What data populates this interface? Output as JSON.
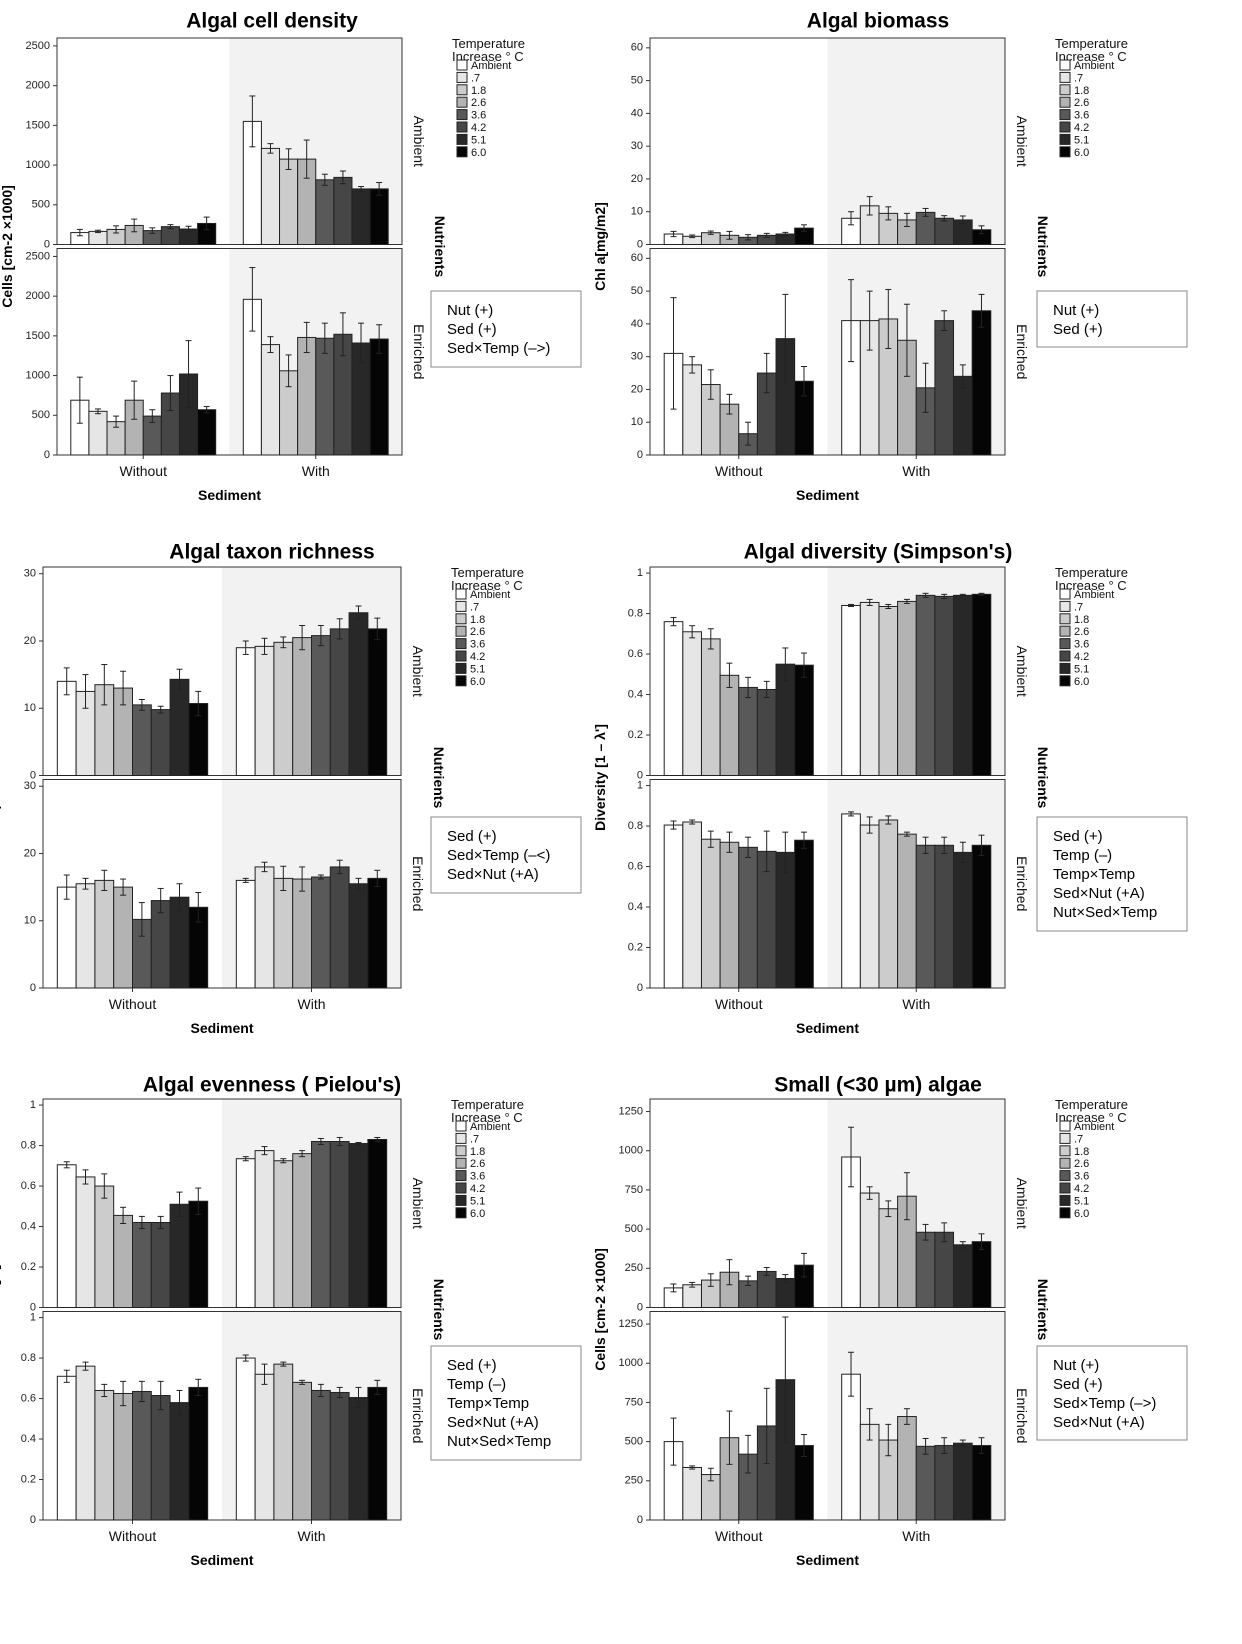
{
  "legend": {
    "title_lines": [
      "Temperature",
      "Increase ° C"
    ],
    "labels": [
      "Ambient",
      ".7",
      "1.8",
      "2.6",
      "3.6",
      "4.2",
      "5.1",
      "6.0"
    ],
    "colors": [
      "#ffffff",
      "#e6e6e6",
      "#cccccc",
      "#b3b3b3",
      "#595959",
      "#464646",
      "#282828",
      "#050505"
    ]
  },
  "facet_labels": {
    "nutrients": "Nutrients",
    "rows": [
      "Ambient",
      "Enriched"
    ]
  },
  "x_axis": {
    "label": "Sediment",
    "categories": [
      "Without",
      "With"
    ]
  },
  "chart_data": [
    {
      "type": "bar",
      "title": "Algal cell density",
      "ylabel": "Cells [cm-2 ×1000]",
      "xlabel": "Sediment",
      "categories": [
        "Without",
        "With"
      ],
      "facets": [
        "Ambient",
        "Enriched"
      ],
      "ylim": [
        0,
        2600
      ],
      "yticks": [
        0,
        500,
        1000,
        1500,
        2000,
        2500
      ],
      "values": {
        "Ambient": {
          "Without": [
            150,
            165,
            190,
            240,
            175,
            225,
            195,
            265
          ],
          "With": [
            1550,
            1210,
            1075,
            1075,
            815,
            845,
            700,
            700
          ]
        },
        "Enriched": {
          "Without": [
            690,
            550,
            420,
            690,
            490,
            780,
            1020,
            570
          ],
          "With": [
            1960,
            1390,
            1060,
            1480,
            1470,
            1520,
            1410,
            1460
          ]
        }
      },
      "errors": {
        "Ambient": {
          "Without": [
            40,
            15,
            45,
            80,
            35,
            25,
            35,
            80
          ],
          "With": [
            320,
            60,
            130,
            240,
            70,
            80,
            30,
            80
          ]
        },
        "Enriched": {
          "Without": [
            290,
            30,
            70,
            240,
            80,
            220,
            420,
            40
          ],
          "With": [
            400,
            100,
            200,
            190,
            190,
            270,
            250,
            180
          ]
        }
      },
      "effects": [
        "Nut (+)",
        "Sed (+)",
        "Sed×Temp (–>)"
      ]
    },
    {
      "type": "bar",
      "title": "Algal biomass",
      "ylabel": "Chl a[mg/m2]",
      "xlabel": "Sediment",
      "categories": [
        "Without",
        "With"
      ],
      "facets": [
        "Ambient",
        "Enriched"
      ],
      "ylim": [
        0,
        63
      ],
      "yticks": [
        0,
        10,
        20,
        30,
        40,
        50,
        60
      ],
      "values": {
        "Ambient": {
          "Without": [
            3.2,
            2.5,
            3.6,
            2.8,
            2.2,
            2.8,
            3.2,
            5.0
          ],
          "With": [
            8.0,
            11.8,
            9.5,
            7.5,
            9.8,
            8.0,
            7.5,
            4.5
          ]
        },
        "Enriched": {
          "Without": [
            31,
            27.5,
            21.5,
            15.5,
            6.5,
            25,
            35.5,
            22.5
          ],
          "With": [
            41,
            41,
            41.5,
            35,
            20.5,
            41,
            24,
            44
          ]
        }
      },
      "errors": {
        "Ambient": {
          "Without": [
            0.8,
            0.4,
            0.5,
            1.2,
            0.8,
            0.6,
            0.5,
            1.0
          ],
          "With": [
            2.0,
            2.8,
            2.0,
            2.0,
            1.2,
            0.8,
            1.2,
            1.2
          ]
        },
        "Enriched": {
          "Without": [
            17,
            2.5,
            4.5,
            3.0,
            3.5,
            6.0,
            13.5,
            4.5
          ],
          "With": [
            12.5,
            9.0,
            9.0,
            11.0,
            7.5,
            3.0,
            3.5,
            5.0
          ]
        }
      },
      "effects": [
        "Nut (+)",
        "Sed (+)"
      ]
    },
    {
      "type": "bar",
      "title": "Algal taxon richness",
      "ylabel": "Taxa per mesocosm",
      "xlabel": "Sediment",
      "categories": [
        "Without",
        "With"
      ],
      "facets": [
        "Ambient",
        "Enriched"
      ],
      "ylim": [
        0,
        31
      ],
      "yticks": [
        0,
        10,
        20,
        30
      ],
      "values": {
        "Ambient": {
          "Without": [
            14,
            12.5,
            13.5,
            13,
            10.5,
            9.8,
            14.3,
            10.7
          ],
          "With": [
            19,
            19.2,
            19.8,
            20.5,
            20.8,
            21.8,
            24.2,
            21.8
          ]
        },
        "Enriched": {
          "Without": [
            15,
            15.5,
            16,
            15,
            10.2,
            13,
            13.5,
            12
          ],
          "With": [
            16,
            18,
            16.3,
            16.2,
            16.5,
            18,
            15.5,
            16.3
          ]
        }
      },
      "errors": {
        "Ambient": {
          "Without": [
            2.0,
            2.5,
            3.0,
            2.5,
            0.8,
            0.5,
            1.5,
            1.8
          ],
          "With": [
            1.0,
            1.2,
            0.8,
            1.8,
            1.5,
            1.5,
            1.0,
            1.6
          ]
        },
        "Enriched": {
          "Without": [
            1.8,
            0.8,
            1.5,
            1.2,
            2.5,
            1.8,
            2.0,
            2.2
          ],
          "With": [
            0.3,
            0.7,
            1.8,
            1.8,
            0.3,
            1.0,
            0.8,
            1.2
          ]
        }
      },
      "effects": [
        "Sed (+)",
        "Sed×Temp (–<)",
        "Sed×Nut (+A)"
      ]
    },
    {
      "type": "bar",
      "title": "Algal diversity (Simpson's)",
      "ylabel": "Diversity [1 – λ']",
      "xlabel": "Sediment",
      "categories": [
        "Without",
        "With"
      ],
      "facets": [
        "Ambient",
        "Enriched"
      ],
      "ylim": [
        0,
        1.03
      ],
      "yticks": [
        0,
        0.2,
        0.4,
        0.6,
        0.8,
        1
      ],
      "values": {
        "Ambient": {
          "Without": [
            0.76,
            0.71,
            0.675,
            0.495,
            0.435,
            0.425,
            0.55,
            0.545
          ],
          "With": [
            0.84,
            0.855,
            0.835,
            0.86,
            0.89,
            0.885,
            0.89,
            0.895
          ]
        },
        "Enriched": {
          "Without": [
            0.805,
            0.82,
            0.735,
            0.72,
            0.695,
            0.675,
            0.67,
            0.73
          ],
          "With": [
            0.86,
            0.805,
            0.83,
            0.76,
            0.705,
            0.705,
            0.67,
            0.705
          ]
        }
      },
      "errors": {
        "Ambient": {
          "Without": [
            0.02,
            0.03,
            0.05,
            0.06,
            0.05,
            0.04,
            0.08,
            0.06
          ],
          "With": [
            0.005,
            0.015,
            0.01,
            0.01,
            0.01,
            0.01,
            0.005,
            0.005
          ]
        },
        "Enriched": {
          "Without": [
            0.02,
            0.01,
            0.04,
            0.05,
            0.05,
            0.1,
            0.1,
            0.04
          ],
          "With": [
            0.01,
            0.04,
            0.02,
            0.01,
            0.04,
            0.04,
            0.05,
            0.05
          ]
        }
      },
      "effects": [
        "Sed (+)",
        "Temp (–)",
        "Temp×Temp",
        "Sed×Nut (+A)",
        "Nut×Sed×Temp"
      ]
    },
    {
      "type": "bar",
      "title": "Algal evenness ( Pielou's)",
      "ylabel": "Evenness [J']",
      "xlabel": "Sediment",
      "categories": [
        "Without",
        "With"
      ],
      "facets": [
        "Ambient",
        "Enriched"
      ],
      "ylim": [
        0,
        1.03
      ],
      "yticks": [
        0,
        0.2,
        0.4,
        0.6,
        0.8,
        1
      ],
      "values": {
        "Ambient": {
          "Without": [
            0.705,
            0.645,
            0.6,
            0.455,
            0.42,
            0.42,
            0.51,
            0.525
          ],
          "With": [
            0.735,
            0.775,
            0.725,
            0.76,
            0.82,
            0.82,
            0.81,
            0.83
          ]
        },
        "Enriched": {
          "Without": [
            0.71,
            0.76,
            0.64,
            0.625,
            0.635,
            0.615,
            0.58,
            0.655
          ],
          "With": [
            0.8,
            0.72,
            0.77,
            0.68,
            0.64,
            0.63,
            0.605,
            0.655
          ]
        }
      },
      "errors": {
        "Ambient": {
          "Without": [
            0.015,
            0.035,
            0.06,
            0.04,
            0.03,
            0.03,
            0.06,
            0.065
          ],
          "With": [
            0.01,
            0.02,
            0.01,
            0.015,
            0.015,
            0.02,
            0.005,
            0.01
          ]
        },
        "Enriched": {
          "Without": [
            0.03,
            0.02,
            0.03,
            0.06,
            0.05,
            0.07,
            0.06,
            0.04
          ],
          "With": [
            0.015,
            0.05,
            0.01,
            0.01,
            0.03,
            0.025,
            0.05,
            0.035
          ]
        }
      },
      "effects": [
        "Sed (+)",
        "Temp (–)",
        "Temp×Temp",
        "Sed×Nut (+A)",
        "Nut×Sed×Temp"
      ]
    },
    {
      "type": "bar",
      "title": "Small (<30 µm) algae",
      "ylabel": "Cells [cm-2 ×1000]",
      "xlabel": "Sediment",
      "categories": [
        "Without",
        "With"
      ],
      "facets": [
        "Ambient",
        "Enriched"
      ],
      "ylim": [
        0,
        1330
      ],
      "yticks": [
        0,
        250,
        500,
        750,
        1000,
        1250
      ],
      "ytick_labels": [
        "0",
        "250",
        "500",
        "750",
        "1000",
        "1250"
      ],
      "values": {
        "Ambient": {
          "Without": [
            125,
            145,
            175,
            225,
            170,
            230,
            185,
            270
          ],
          "With": [
            960,
            730,
            630,
            710,
            480,
            480,
            400,
            420
          ]
        },
        "Enriched": {
          "Without": [
            500,
            335,
            290,
            525,
            420,
            600,
            895,
            475
          ],
          "With": [
            930,
            610,
            510,
            660,
            470,
            475,
            490,
            475
          ]
        }
      },
      "errors": {
        "Ambient": {
          "Without": [
            25,
            15,
            40,
            80,
            30,
            25,
            25,
            75
          ],
          "With": [
            190,
            40,
            50,
            150,
            50,
            60,
            20,
            50
          ]
        },
        "Enriched": {
          "Without": [
            150,
            10,
            40,
            170,
            120,
            240,
            400,
            70
          ],
          "With": [
            140,
            100,
            100,
            50,
            50,
            50,
            20,
            50
          ]
        }
      },
      "effects": [
        "Nut (+)",
        "Sed (+)",
        "Sed×Temp (–>)",
        "Sed×Nut (+A)"
      ]
    }
  ]
}
